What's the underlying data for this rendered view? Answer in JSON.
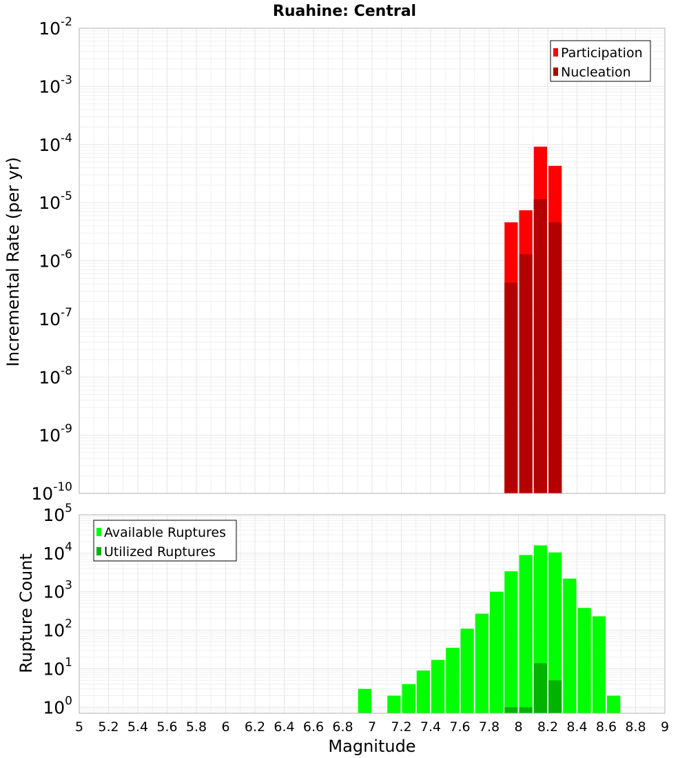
{
  "chart_data": [
    {
      "type": "bar",
      "title": "Ruahine: Central",
      "xlabel": "",
      "ylabel": "Incremental Rate (per yr)",
      "yscale": "log",
      "ylim": [
        1e-10,
        0.01
      ],
      "xlim": [
        5,
        9
      ],
      "bin_width": 0.1,
      "grid": true,
      "legend_position": "top-right",
      "x": [
        7.95,
        8.05,
        8.15,
        8.25
      ],
      "series": [
        {
          "name": "Participation",
          "color": "#ff0000",
          "values": [
            4.6e-06,
            7.4e-06,
            9.2e-05,
            4.3e-05
          ]
        },
        {
          "name": "Nucleation",
          "color": "#b30000",
          "values": [
            4.2e-07,
            1.3e-06,
            1.15e-05,
            4.6e-06
          ]
        }
      ],
      "ytick_exponents": [
        -10,
        -9,
        -8,
        -7,
        -6,
        -5,
        -4,
        -3,
        -2
      ]
    },
    {
      "type": "bar",
      "title": "",
      "xlabel": "Magnitude",
      "ylabel": "Rupture Count",
      "yscale": "log",
      "ylim": [
        0.7,
        100000
      ],
      "xlim": [
        5,
        9
      ],
      "bin_width": 0.1,
      "grid": true,
      "legend_position": "top-left",
      "x": [
        6.95,
        7.15,
        7.25,
        7.35,
        7.45,
        7.55,
        7.65,
        7.75,
        7.85,
        7.95,
        8.05,
        8.15,
        8.25,
        8.35,
        8.45,
        8.55,
        8.65
      ],
      "series": [
        {
          "name": "Available Ruptures",
          "color": "#00ff00",
          "values": [
            3,
            2,
            4,
            9,
            17,
            35,
            110,
            270,
            1000,
            3400,
            9000,
            16000,
            10500,
            2200,
            380,
            230,
            2
          ]
        },
        {
          "name": "Utilized Ruptures",
          "color": "#00b300",
          "values": [
            0,
            0,
            0,
            0,
            0,
            0,
            0,
            0,
            0,
            1,
            1,
            14,
            5,
            0,
            0,
            0,
            0
          ]
        }
      ],
      "ytick_exponents": [
        0,
        1,
        2,
        3,
        4,
        5
      ],
      "xticks": [
        "5",
        "5.2",
        "5.4",
        "5.6",
        "5.8",
        "6",
        "6.2",
        "6.4",
        "6.6",
        "6.8",
        "7",
        "7.2",
        "7.4",
        "7.6",
        "7.8",
        "8",
        "8.2",
        "8.4",
        "8.6",
        "8.8",
        "9"
      ]
    }
  ]
}
